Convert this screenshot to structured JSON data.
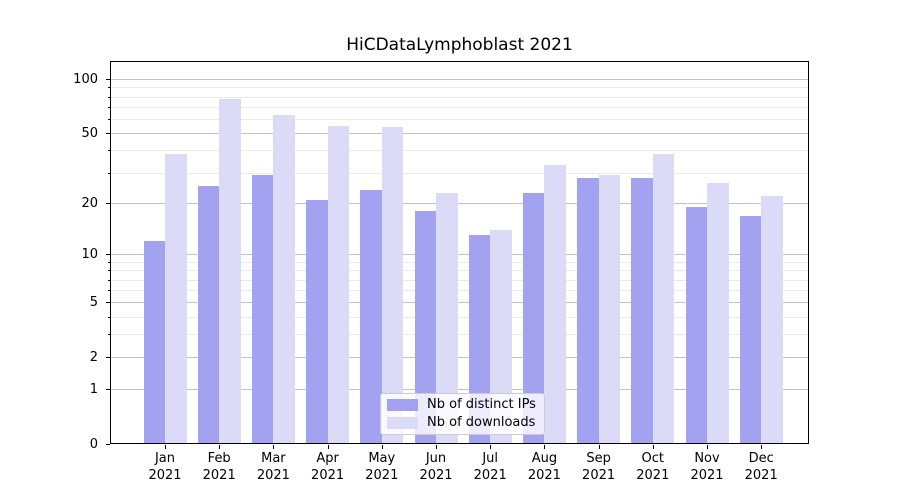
{
  "title": "HiCDataLymphoblast 2021",
  "chart_data": {
    "type": "bar",
    "title": "HiCDataLymphoblast 2021",
    "categories": [
      "Jan 2021",
      "Feb 2021",
      "Mar 2021",
      "Apr 2021",
      "May 2021",
      "Jun 2021",
      "Jul 2021",
      "Aug 2021",
      "Sep 2021",
      "Oct 2021",
      "Nov 2021",
      "Dec 2021"
    ],
    "series": [
      {
        "name": "Nb of distinct IPs",
        "color": "#a2a2f0",
        "values": [
          12,
          25,
          29,
          21,
          24,
          18,
          13,
          23,
          28,
          28,
          19,
          17
        ]
      },
      {
        "name": "Nb of downloads",
        "color": "#dbdbf8",
        "values": [
          38,
          78,
          63,
          55,
          54,
          23,
          14,
          33,
          29,
          38,
          26,
          22
        ]
      }
    ],
    "xlabel": "",
    "ylabel": "",
    "yscale": "log1p",
    "ylim": [
      0,
      126
    ],
    "y_major_ticks": [
      0,
      1,
      2,
      5,
      10,
      20,
      50,
      100
    ],
    "y_minor_ticks": [
      3,
      4,
      6,
      7,
      8,
      9,
      30,
      40,
      60,
      70,
      80,
      90
    ],
    "grid": true,
    "legend_position": "lower center"
  },
  "legend": {
    "items": [
      {
        "label": "Nb of distinct IPs"
      },
      {
        "label": "Nb of downloads"
      }
    ]
  },
  "colors": {
    "bar_distinct_ips": "#a2a2f0",
    "bar_downloads": "#dbdbf8",
    "major_grid": "#c3c3c3",
    "minor_grid": "#eaeaea",
    "axis": "#000000",
    "legend_border": "#cccccc",
    "text": "#000000"
  }
}
